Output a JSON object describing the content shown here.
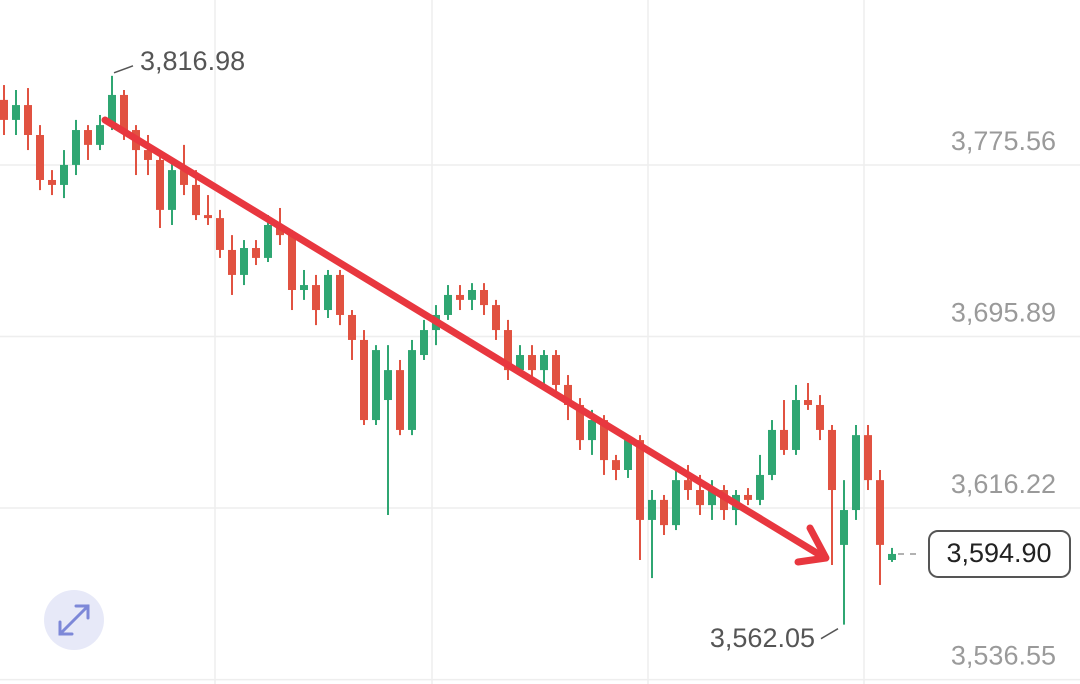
{
  "chart_data": {
    "type": "candlestick",
    "up_color": "#2fa672",
    "down_color": "#e15241",
    "grid": true,
    "ylim": [
      3534.5,
      3852.2
    ],
    "yticks": [
      {
        "value": 3775.56,
        "label": "3,775.56"
      },
      {
        "value": 3695.89,
        "label": "3,695.89"
      },
      {
        "value": 3616.22,
        "label": "3,616.22"
      },
      {
        "value": 3536.55,
        "label": "3,536.55"
      }
    ],
    "open": [
      3805.8,
      3796.5,
      3803.4,
      3789.5,
      3768.6,
      3766.3,
      3775.6,
      3791.8,
      3784.9,
      3794.1,
      3808.1,
      3791.8,
      3782.5,
      3777.9,
      3754.7,
      3773.2,
      3766.3,
      3752.3,
      3750.9,
      3736.1,
      3724.5,
      3737.0,
      3732.4,
      3747.7,
      3743.0,
      3717.5,
      3719.8,
      3708.2,
      3724.5,
      3705.9,
      3694.3,
      3657.1,
      3666.4,
      3680.3,
      3652.5,
      3687.3,
      3698.9,
      3705.9,
      3715.2,
      3712.9,
      3717.5,
      3710.5,
      3698.9,
      3680.3,
      3687.3,
      3680.3,
      3687.3,
      3673.4,
      3664.1,
      3647.8,
      3657.1,
      3638.5,
      3633.9,
      3647.8,
      3610.7,
      3620.0,
      3608.3,
      3629.2,
      3624.6,
      3617.6,
      3624.6,
      3615.3,
      3622.3,
      3620.0,
      3631.6,
      3652.5,
      3643.2,
      3666.4,
      3664.1,
      3652.5,
      3599.1,
      3615.3,
      3650.1,
      3629.2,
      3592.1
    ],
    "high": [
      3812.7,
      3810.4,
      3811.3,
      3794.1,
      3773.2,
      3782.5,
      3796.5,
      3794.1,
      3798.8,
      3816.98,
      3810.4,
      3794.1,
      3789.5,
      3782.5,
      3777.9,
      3784.9,
      3773.2,
      3761.6,
      3754.7,
      3743.0,
      3740.7,
      3740.7,
      3752.3,
      3755.6,
      3745.4,
      3726.8,
      3724.5,
      3726.8,
      3726.8,
      3708.2,
      3698.9,
      3691.9,
      3691.9,
      3685.0,
      3694.3,
      3703.6,
      3710.5,
      3719.8,
      3719.8,
      3720.7,
      3720.7,
      3712.9,
      3703.6,
      3691.9,
      3691.9,
      3689.6,
      3689.6,
      3678.0,
      3667.3,
      3661.8,
      3659.4,
      3640.9,
      3650.1,
      3650.1,
      3624.6,
      3622.3,
      3633.9,
      3636.2,
      3631.6,
      3629.2,
      3626.9,
      3624.6,
      3625.5,
      3640.9,
      3657.1,
      3666.4,
      3673.4,
      3674.3,
      3668.7,
      3654.8,
      3629.2,
      3654.8,
      3654.8,
      3633.9,
      3597.7
    ],
    "low": [
      3789.5,
      3789.5,
      3782.5,
      3763.9,
      3761.6,
      3760.2,
      3770.9,
      3777.9,
      3782.5,
      3791.8,
      3787.2,
      3770.9,
      3770.9,
      3746.3,
      3747.7,
      3761.6,
      3750.0,
      3747.7,
      3732.4,
      3715.2,
      3719.8,
      3729.1,
      3730.5,
      3738.4,
      3708.2,
      3712.9,
      3701.2,
      3704.5,
      3701.2,
      3685.0,
      3654.8,
      3654.8,
      3613.0,
      3650.1,
      3650.1,
      3685.0,
      3691.9,
      3703.6,
      3708.2,
      3708.2,
      3705.9,
      3694.3,
      3675.7,
      3678.0,
      3675.7,
      3673.4,
      3668.7,
      3657.1,
      3643.2,
      3640.9,
      3631.6,
      3629.2,
      3630.2,
      3592.1,
      3583.7,
      3603.7,
      3606.0,
      3620.0,
      3613.0,
      3610.7,
      3610.7,
      3608.3,
      3617.6,
      3617.6,
      3629.2,
      3640.9,
      3640.9,
      3661.8,
      3647.8,
      3589.8,
      3562.05,
      3610.7,
      3624.6,
      3580.5,
      3591.2
    ],
    "close": [
      3796.5,
      3803.4,
      3789.5,
      3768.6,
      3766.3,
      3775.6,
      3791.8,
      3784.9,
      3794.1,
      3808.1,
      3791.8,
      3782.5,
      3777.9,
      3754.7,
      3773.2,
      3766.3,
      3752.3,
      3750.9,
      3736.1,
      3724.5,
      3737.0,
      3732.4,
      3747.7,
      3743.0,
      3717.5,
      3719.8,
      3708.2,
      3724.5,
      3705.9,
      3694.3,
      3657.1,
      3689.6,
      3680.3,
      3652.5,
      3689.6,
      3698.9,
      3705.9,
      3715.2,
      3712.9,
      3717.5,
      3710.5,
      3698.9,
      3680.3,
      3687.3,
      3680.3,
      3687.3,
      3673.4,
      3664.1,
      3647.8,
      3657.1,
      3638.5,
      3633.9,
      3647.8,
      3610.7,
      3620.0,
      3608.3,
      3629.2,
      3624.6,
      3617.6,
      3624.6,
      3615.3,
      3622.3,
      3620.0,
      3631.6,
      3652.5,
      3643.2,
      3666.4,
      3664.1,
      3652.5,
      3624.6,
      3615.3,
      3650.1,
      3629.2,
      3599.1,
      3594.9
    ],
    "high_marker": {
      "value": 3816.98,
      "label": "3,816.98"
    },
    "low_marker": {
      "value": 3562.05,
      "label": "3,562.05"
    },
    "last_price": {
      "value": 3594.9,
      "label": "3,594.90"
    }
  }
}
